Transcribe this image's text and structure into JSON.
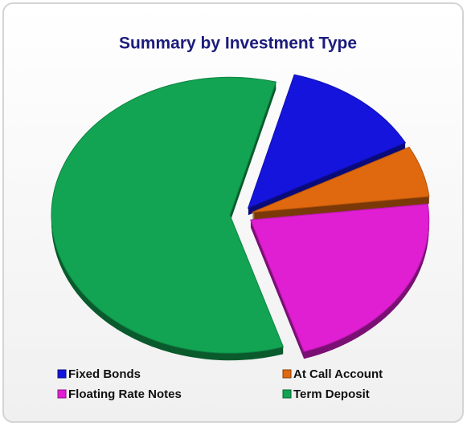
{
  "chart_data": {
    "type": "pie",
    "title": "Summary by Investment Type",
    "categories": [
      "Fixed Bonds",
      "At Call Account",
      "Floating Rate Notes",
      "Term Deposit"
    ],
    "values": [
      13,
      6,
      22,
      59
    ],
    "colors": [
      "#1414dc",
      "#e0680e",
      "#e01ed2",
      "#12a452"
    ],
    "legend": "bottom"
  }
}
